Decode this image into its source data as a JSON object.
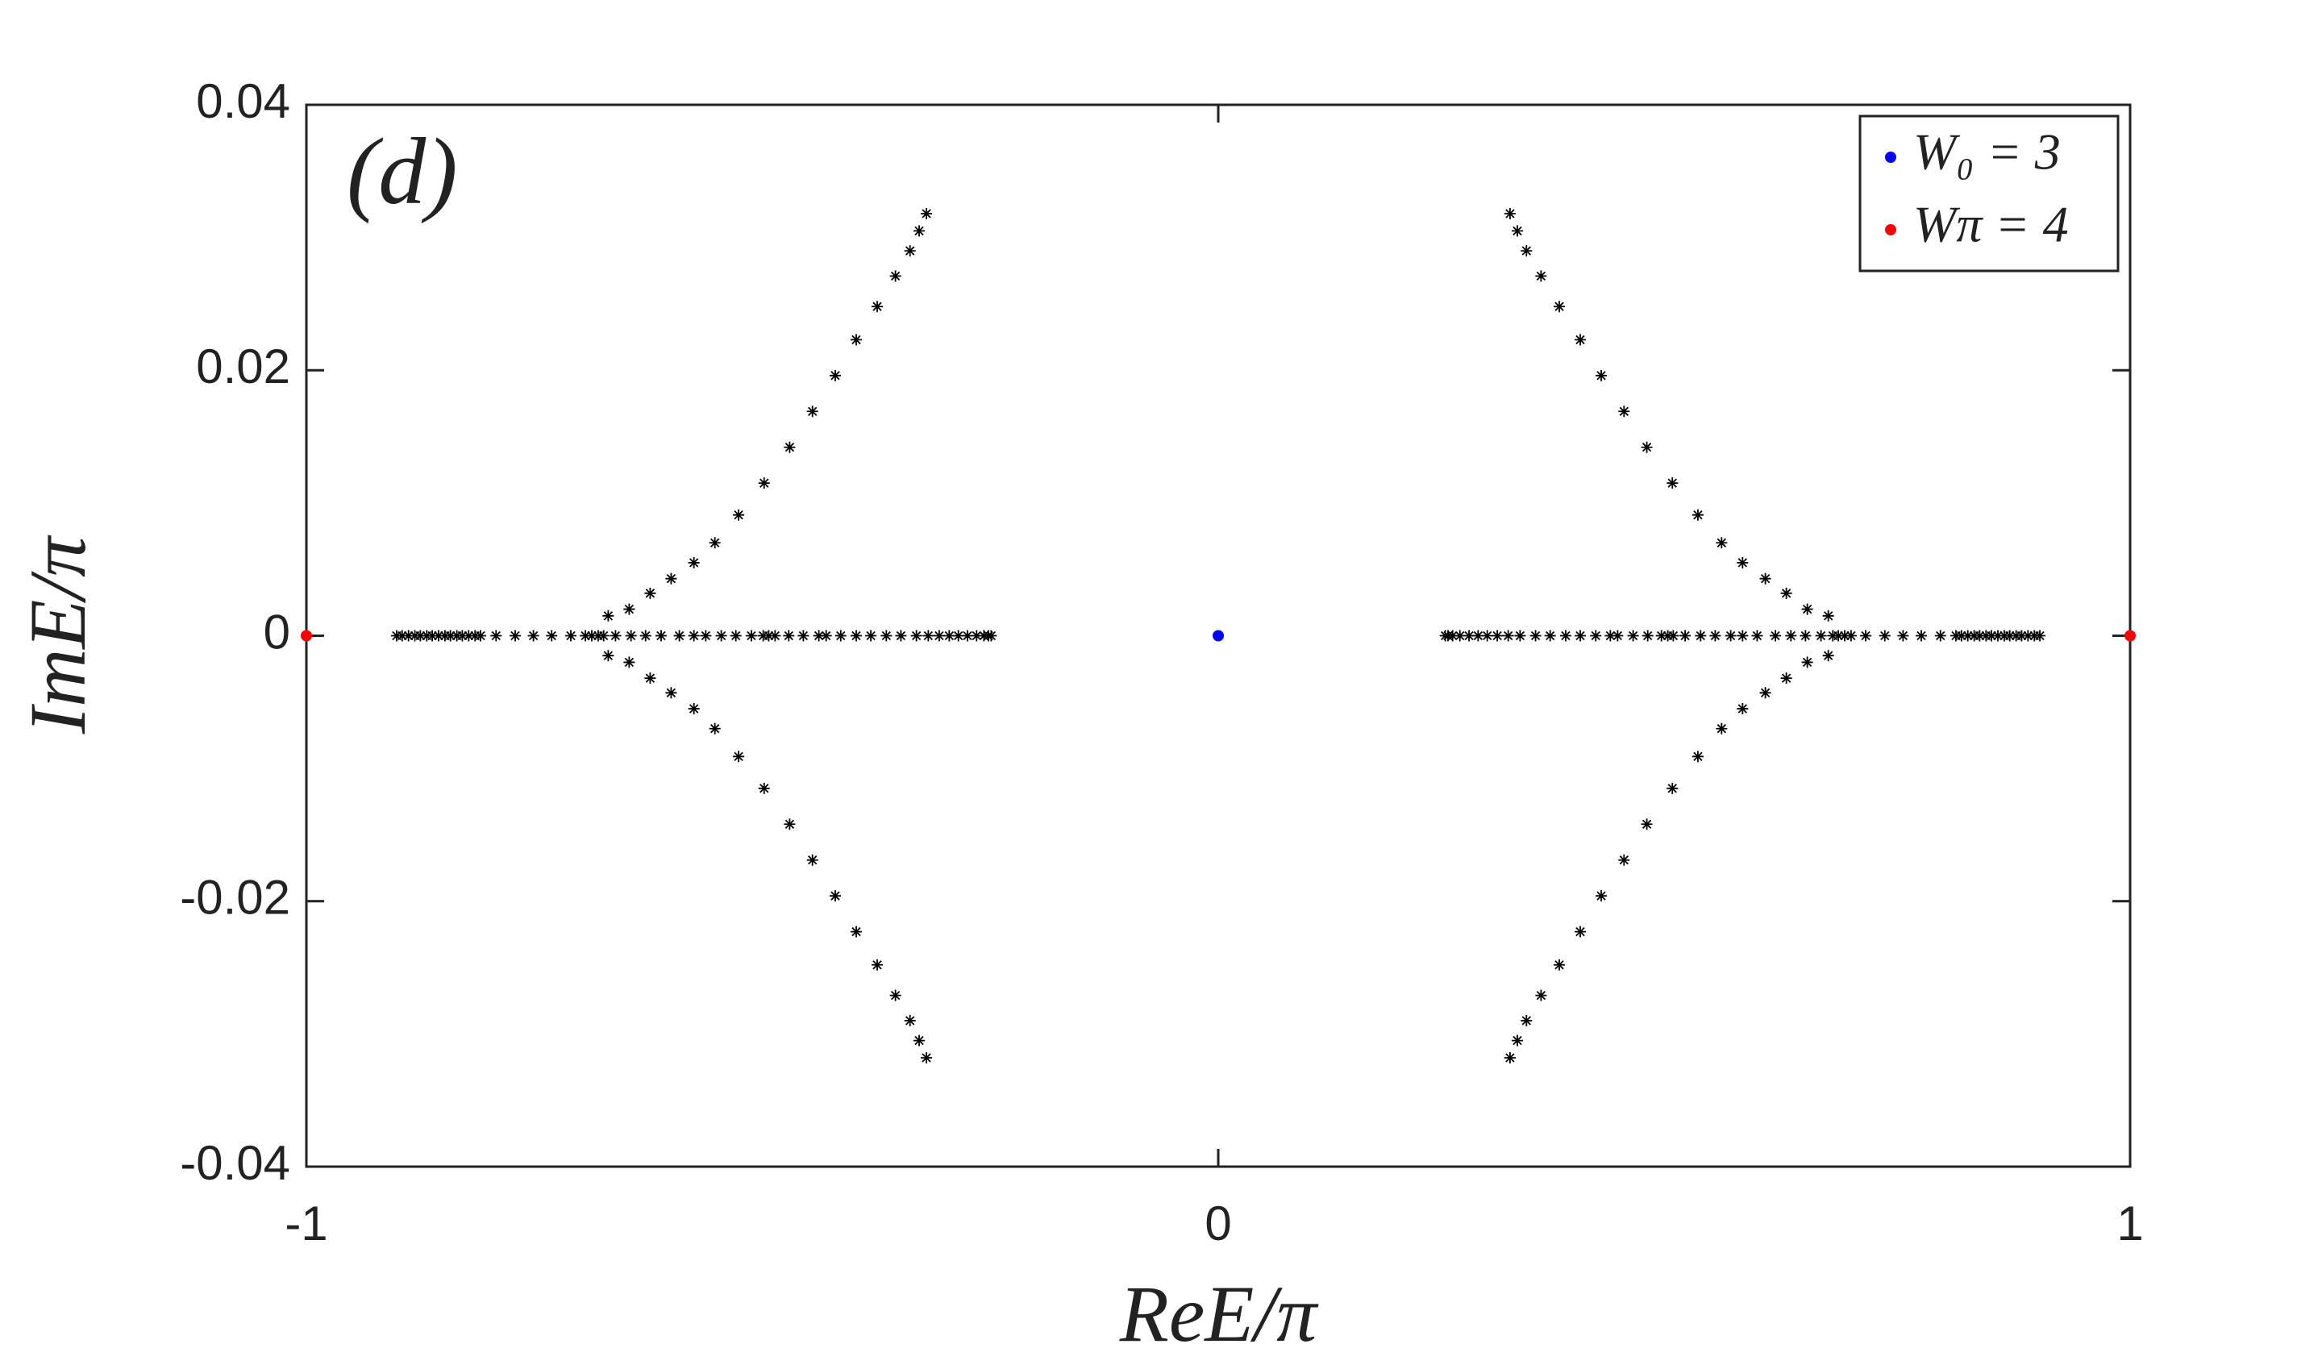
{
  "chart_data": {
    "type": "scatter",
    "annotation": "(d)",
    "x_label": "ReE/π",
    "y_label": "ImE/π",
    "xlim": [
      -1,
      1
    ],
    "xticks": [
      -1,
      0,
      1
    ],
    "ylim": [
      -0.04,
      0.04
    ],
    "yticks": [
      -0.04,
      -0.02,
      0,
      0.02,
      0.04
    ],
    "legend": "upper right",
    "series": [
      {
        "color": "#000000",
        "marker": "asterisk",
        "x": [
          -0.901,
          -0.895,
          -0.888,
          -0.881,
          -0.875,
          -0.868,
          -0.862,
          -0.855,
          -0.848,
          -0.842,
          -0.835,
          -0.829,
          -0.822,
          -0.815,
          -0.809,
          -0.792,
          -0.771,
          -0.751,
          -0.731,
          -0.71,
          -0.694,
          -0.687,
          -0.68,
          -0.674,
          -0.661,
          -0.644,
          -0.628,
          -0.611,
          -0.591,
          -0.575,
          -0.562,
          -0.545,
          -0.529,
          -0.512,
          -0.499,
          -0.493,
          -0.486,
          -0.471,
          -0.455,
          -0.438,
          -0.43,
          -0.414,
          -0.397,
          -0.381,
          -0.364,
          -0.348,
          -0.331,
          -0.318,
          -0.306,
          -0.295,
          -0.285,
          -0.275,
          -0.265,
          -0.257,
          -0.252,
          -0.249,
          0.901,
          0.895,
          0.888,
          0.881,
          0.875,
          0.868,
          0.862,
          0.855,
          0.848,
          0.842,
          0.835,
          0.829,
          0.822,
          0.815,
          0.809,
          0.792,
          0.771,
          0.751,
          0.731,
          0.71,
          0.694,
          0.687,
          0.68,
          0.674,
          0.661,
          0.644,
          0.628,
          0.611,
          0.591,
          0.575,
          0.562,
          0.545,
          0.529,
          0.512,
          0.499,
          0.493,
          0.486,
          0.471,
          0.455,
          0.438,
          0.43,
          0.414,
          0.397,
          0.381,
          0.364,
          0.348,
          0.331,
          0.318,
          0.306,
          0.295,
          0.285,
          0.275,
          0.265,
          0.257,
          0.252,
          0.249
        ],
        "y": [
          0,
          0,
          0,
          0,
          0,
          0,
          0,
          0,
          0,
          0,
          0,
          0,
          0,
          0,
          0,
          0,
          0,
          0,
          0,
          0,
          0,
          0,
          0,
          0,
          0,
          0,
          0,
          0,
          0,
          0,
          0,
          0,
          0,
          0,
          0,
          0,
          0,
          0,
          0,
          0,
          0,
          0,
          0,
          0,
          0,
          0,
          0,
          0,
          0,
          0,
          0,
          0,
          0,
          0,
          0,
          0,
          0,
          0,
          0,
          0,
          0,
          0,
          0,
          0,
          0,
          0,
          0,
          0,
          0,
          0,
          0,
          0,
          0,
          0,
          0,
          0,
          0,
          0,
          0,
          0,
          0,
          0,
          0,
          0,
          0,
          0,
          0,
          0,
          0,
          0,
          0,
          0,
          0,
          0,
          0,
          0,
          0,
          0,
          0,
          0,
          0,
          0,
          0,
          0,
          0,
          0,
          0,
          0,
          0,
          0,
          0,
          0
        ]
      },
      {
        "color": "#000000",
        "marker": "asterisk",
        "x": [
          -0.669,
          -0.646,
          -0.623,
          -0.6,
          -0.575,
          -0.552,
          -0.526,
          -0.498,
          -0.47,
          -0.445,
          -0.42,
          -0.397,
          -0.374,
          -0.354,
          -0.338,
          -0.328,
          -0.32,
          -0.669,
          -0.646,
          -0.623,
          -0.6,
          -0.575,
          -0.552,
          -0.526,
          -0.498,
          -0.47,
          -0.445,
          -0.42,
          -0.397,
          -0.374,
          -0.354,
          -0.338,
          -0.328,
          -0.32,
          0.669,
          0.646,
          0.623,
          0.6,
          0.575,
          0.552,
          0.526,
          0.498,
          0.47,
          0.445,
          0.42,
          0.397,
          0.374,
          0.354,
          0.338,
          0.328,
          0.32,
          0.669,
          0.646,
          0.623,
          0.6,
          0.575,
          0.552,
          0.526,
          0.498,
          0.47,
          0.445,
          0.42,
          0.397,
          0.374,
          0.354,
          0.338,
          0.328,
          0.32
        ],
        "y": [
          0.0015,
          0.002,
          0.0032,
          0.0043,
          0.0055,
          0.007,
          0.0091,
          0.0115,
          0.0142,
          0.0169,
          0.0196,
          0.0223,
          0.0248,
          0.0271,
          0.029,
          0.0305,
          0.0318,
          -0.0015,
          -0.002,
          -0.0032,
          -0.0043,
          -0.0055,
          -0.007,
          -0.0091,
          -0.0115,
          -0.0142,
          -0.0169,
          -0.0196,
          -0.0223,
          -0.0248,
          -0.0271,
          -0.029,
          -0.0305,
          -0.0318,
          0.0015,
          0.002,
          0.0032,
          0.0043,
          0.0055,
          0.007,
          0.0091,
          0.0115,
          0.0142,
          0.0169,
          0.0196,
          0.0223,
          0.0248,
          0.0271,
          0.029,
          0.0305,
          0.0318,
          -0.0015,
          -0.002,
          -0.0032,
          -0.0043,
          -0.0055,
          -0.007,
          -0.0091,
          -0.0115,
          -0.0142,
          -0.0169,
          -0.0196,
          -0.0223,
          -0.0248,
          -0.0271,
          -0.029,
          -0.0305,
          -0.0318
        ]
      },
      {
        "name": "W₀ = 3",
        "color": "#0000ff",
        "marker": "dot",
        "x": [
          0
        ],
        "y": [
          0
        ]
      },
      {
        "name": "Wπ = 4",
        "color": "#ff0000",
        "marker": "dot",
        "x": [
          -1,
          1
        ],
        "y": [
          0,
          0
        ]
      }
    ]
  }
}
